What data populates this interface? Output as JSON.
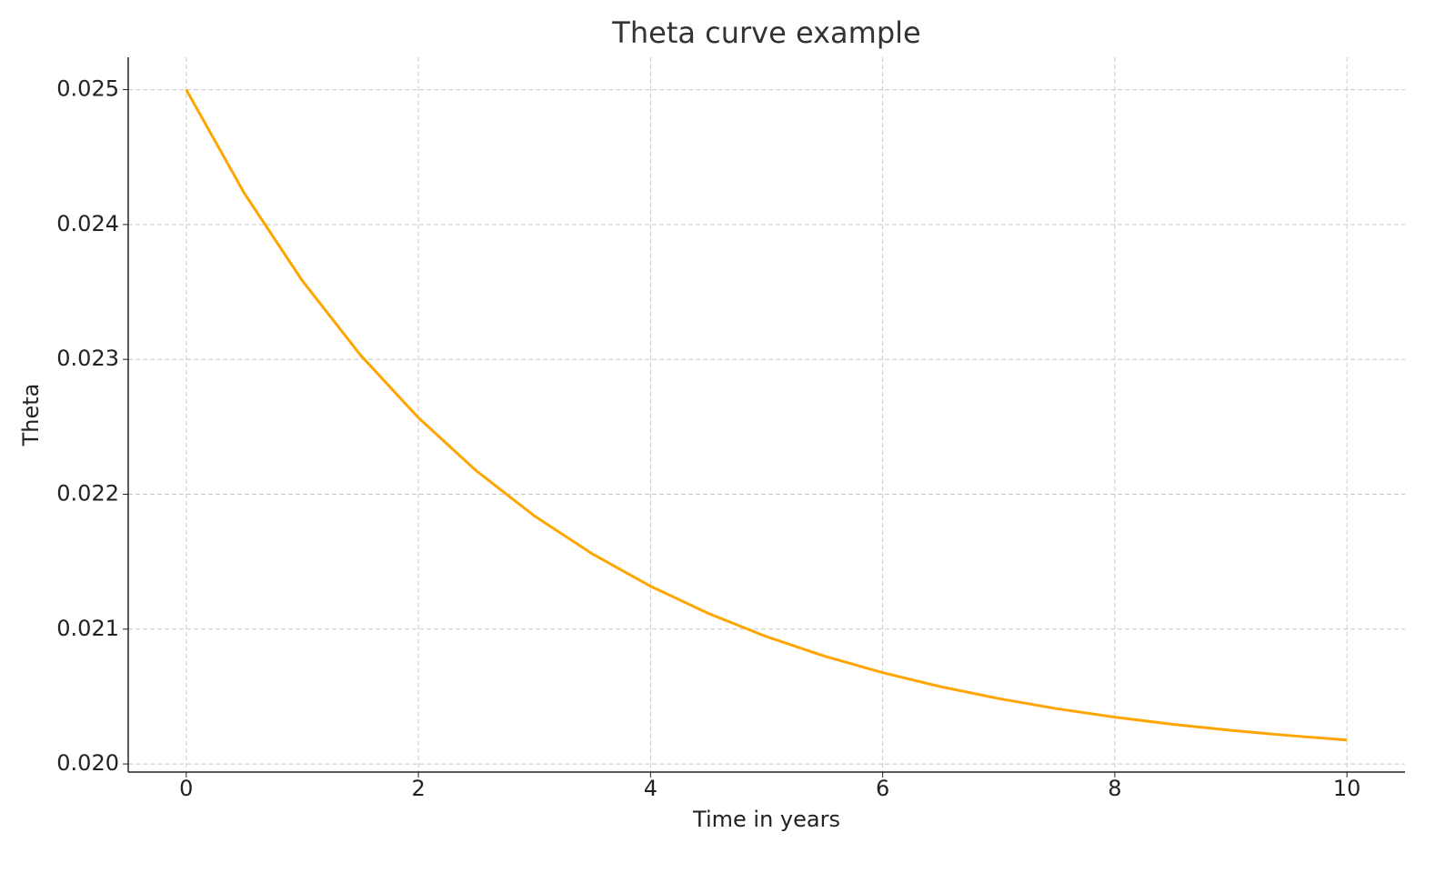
{
  "chart_data": {
    "type": "line",
    "title": "Theta curve example",
    "x_label": "Time in years",
    "y_label": "Theta",
    "x": [
      0,
      0.5,
      1,
      1.5,
      2,
      2.5,
      3,
      3.5,
      4,
      4.5,
      5,
      5.5,
      6,
      6.5,
      7,
      7.5,
      8,
      8.5,
      9,
      9.5,
      10
    ],
    "series": [
      {
        "color": "#ffa500",
        "values": [
          0.025,
          0.024232,
          0.023583,
          0.023033,
          0.022567,
          0.022173,
          0.021839,
          0.021557,
          0.021318,
          0.021116,
          0.020944,
          0.020799,
          0.020677,
          0.020573,
          0.020485,
          0.02041,
          0.020347,
          0.020294,
          0.020249,
          0.020211,
          0.020178
        ]
      }
    ],
    "xlim": [
      -0.5,
      10.5
    ],
    "xticks": [
      0,
      2,
      4,
      6,
      8,
      10
    ],
    "ylim": [
      0.01994,
      0.02524
    ],
    "yticks": [
      {
        "value": 0.02,
        "label": "0.020"
      },
      0.021,
      0.022,
      0.023,
      0.024,
      0.025
    ],
    "grid": true
  }
}
